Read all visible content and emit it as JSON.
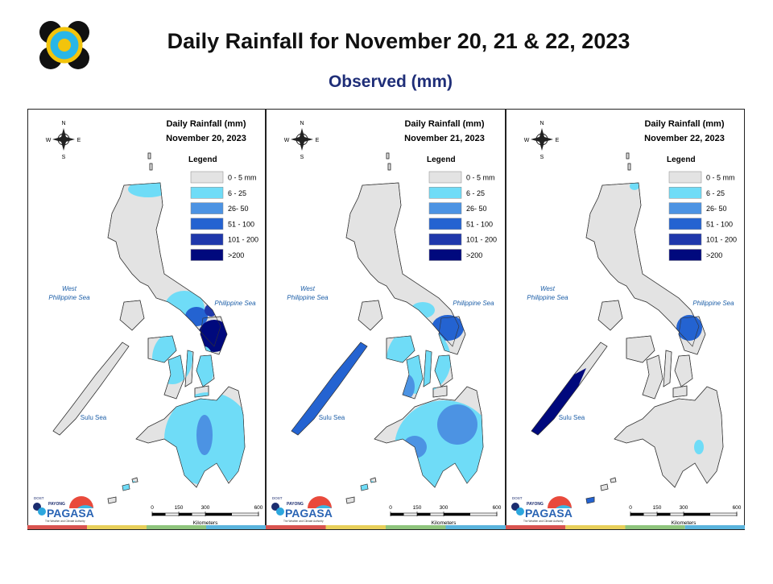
{
  "header": {
    "title": "Daily Rainfall for November 20, 21 & 22, 2023",
    "subtitle": "Observed (mm)"
  },
  "legend": {
    "title": "Legend",
    "items": [
      {
        "label": "0 - 5 mm",
        "color": "#e3e3e3"
      },
      {
        "label": "6 - 25",
        "color": "#6fdcf7"
      },
      {
        "label": "26- 50",
        "color": "#4c93e3"
      },
      {
        "label": "51 - 100",
        "color": "#2463d1"
      },
      {
        "label": "101 - 200",
        "color": "#1f38ab"
      },
      {
        "label": ">200",
        "color": "#00097d"
      }
    ]
  },
  "panels": [
    {
      "title": "Daily Rainfall (mm)",
      "date": "November 20, 2023"
    },
    {
      "title": "Daily Rainfall (mm)",
      "date": "November 21, 2023"
    },
    {
      "title": "Daily Rainfall (mm)",
      "date": "November 22, 2023"
    }
  ],
  "map_labels": {
    "west_sea": [
      "West",
      "Philippine Sea"
    ],
    "east_sea": "Philippine Sea",
    "sulu_sea": "Sulu Sea"
  },
  "compass": {
    "n": "N",
    "s": "S",
    "w": "W",
    "e": "E"
  },
  "scale": {
    "ticks": [
      0,
      150,
      300,
      600
    ],
    "unit": "Kilometers"
  },
  "logo": {
    "agency": "DOST",
    "program": "PAYONG",
    "name": "PAGASA",
    "tagline": "The Weather and Climate Authority"
  }
}
